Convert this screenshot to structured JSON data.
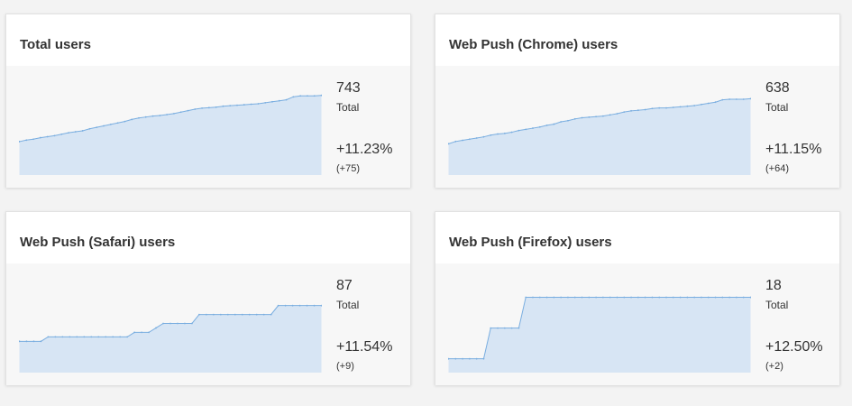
{
  "chart_data": [
    {
      "type": "area",
      "title": "Total users",
      "total": "743",
      "total_label": "Total",
      "change_pct": "+11.23%",
      "change_abs": "(+75)",
      "values": [
        668,
        671,
        673,
        676,
        678,
        680,
        683,
        686,
        688,
        690,
        694,
        697,
        700,
        703,
        706,
        709,
        713,
        716,
        718,
        720,
        721,
        723,
        725,
        728,
        731,
        734,
        736,
        737,
        738,
        740,
        741,
        742,
        743,
        744,
        745,
        747,
        749,
        751,
        753,
        759,
        761,
        761,
        761,
        762
      ],
      "ylim": [
        600,
        800
      ]
    },
    {
      "type": "area",
      "title": "Web Push (Chrome) users",
      "total": "638",
      "total_label": "Total",
      "change_pct": "+11.15%",
      "change_abs": "(+64)",
      "values": [
        574,
        578,
        580,
        582,
        584,
        586,
        589,
        591,
        592,
        594,
        597,
        599,
        601,
        603,
        606,
        608,
        612,
        614,
        617,
        619,
        620,
        621,
        622,
        624,
        626,
        629,
        631,
        632,
        633,
        635,
        636,
        636,
        637,
        638,
        639,
        640,
        642,
        644,
        646,
        650,
        651,
        651,
        651,
        652
      ],
      "ylim": [
        520,
        690
      ]
    },
    {
      "type": "area",
      "title": "Web Push (Safari) users",
      "total": "87",
      "total_label": "Total",
      "change_pct": "+11.54%",
      "change_abs": "(+9)",
      "values": [
        77,
        77,
        77,
        77,
        78,
        78,
        78,
        78,
        78,
        78,
        78,
        78,
        78,
        78,
        78,
        78,
        79,
        79,
        79,
        80,
        81,
        81,
        81,
        81,
        81,
        83,
        83,
        83,
        83,
        83,
        83,
        83,
        83,
        83,
        83,
        83,
        85,
        85,
        85,
        85,
        85,
        85,
        85
      ],
      "ylim": [
        70,
        92
      ]
    },
    {
      "type": "area",
      "title": "Web Push (Firefox) users",
      "total": "18",
      "total_label": "Total",
      "change_pct": "+12.50%",
      "change_abs": "(+2)",
      "values": [
        16,
        16,
        16,
        16,
        16,
        16,
        17,
        17,
        17,
        17,
        17,
        18,
        18,
        18,
        18,
        18,
        18,
        18,
        18,
        18,
        18,
        18,
        18,
        18,
        18,
        18,
        18,
        18,
        18,
        18,
        18,
        18,
        18,
        18,
        18,
        18,
        18,
        18,
        18,
        18,
        18,
        18,
        18,
        18
      ],
      "ylim": [
        15.55,
        18.75
      ]
    }
  ],
  "colors": {
    "area_fill": "#d7e5f4",
    "line": "#7aaee0",
    "text": "#333333"
  }
}
